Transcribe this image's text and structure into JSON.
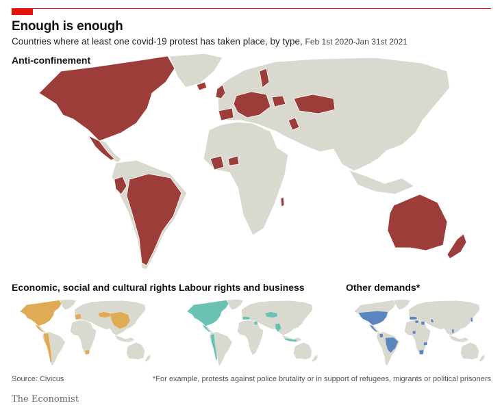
{
  "header": {
    "title": "Enough is enough",
    "subtitle": "Countries where at least one covid-19 protest has taken place, by type,",
    "date_range": "Feb 1st 2020-Jan 31st 2021"
  },
  "colors": {
    "land": "#d9d9d0",
    "anti_confinement": "#9c3d3a",
    "economic_social_cultural": "#e0ab55",
    "labour_business": "#6cc2b2",
    "other_demands": "#5a86c0",
    "accent": "#e3120b"
  },
  "panels": {
    "anti_confinement": {
      "label": "Anti-confinement",
      "highlighted_countries": [
        "Canada",
        "United States",
        "Mexico",
        "Guatemala",
        "Cuba",
        "Panama",
        "Ecuador",
        "Peru",
        "Brazil",
        "Bolivia",
        "Paraguay",
        "Argentina",
        "Chile",
        "Uruguay",
        "Iceland",
        "United Kingdom",
        "Ireland",
        "Finland",
        "Spain",
        "Portugal",
        "France",
        "Germany",
        "Poland",
        "Italy",
        "Austria",
        "Hungary",
        "Serbia",
        "Bulgaria",
        "Romania",
        "Ukraine",
        "Kazakhstan",
        "Iraq",
        "Guinea",
        "Sierra Leone",
        "Liberia",
        "Ghana",
        "Nigeria",
        "Malawi",
        "Australia",
        "New Zealand"
      ]
    },
    "economic": {
      "label": "Economic, social and cultural rights",
      "highlighted_countries": [
        "Canada",
        "United States",
        "Mexico",
        "Colombia",
        "Ecuador",
        "Peru",
        "Chile",
        "Argentina",
        "Kazakhstan",
        "China",
        "Mongolia",
        "South Africa",
        "Portugal",
        "France",
        "Italy"
      ]
    },
    "labour": {
      "label": "Labour rights and business",
      "highlighted_countries": [
        "Canada",
        "United States",
        "Mexico",
        "Colombia",
        "Peru",
        "Chile",
        "Spain",
        "Italy",
        "Egypt",
        "Kazakhstan",
        "India",
        "Bangladesh",
        "Indonesia"
      ]
    },
    "other": {
      "label": "Other demands*",
      "highlighted_countries": [
        "United States",
        "Mexico",
        "Brazil",
        "Colombia",
        "Spain",
        "Italy",
        "Tunisia",
        "Egypt",
        "Nigeria",
        "Zambia",
        "Iraq",
        "South Africa",
        "Japan",
        "Thailand"
      ]
    }
  },
  "footer": {
    "source": "Source: Civicus",
    "note": "*For example, protests against police brutality or in support of refugees, migrants or political prisoners",
    "brand": "The Economist"
  }
}
